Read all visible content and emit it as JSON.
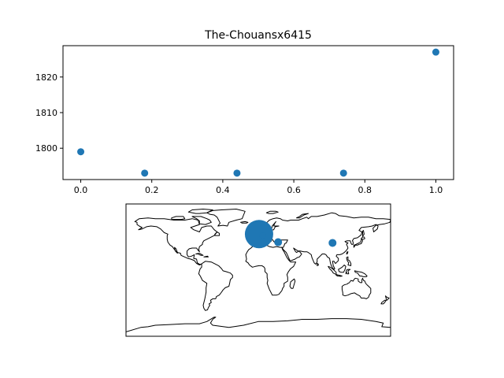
{
  "chart_data": [
    {
      "type": "scatter",
      "title": "The-Chouansx6415",
      "xlabel": "",
      "ylabel": "",
      "x": [
        0.0,
        0.18,
        0.44,
        0.74,
        1.0
      ],
      "y": [
        1799,
        1793,
        1793,
        1793,
        1827
      ],
      "xlim": [
        -0.05,
        1.05
      ],
      "ylim": [
        1791.2,
        1828.8
      ],
      "xticks": [
        0.0,
        0.2,
        0.4,
        0.6,
        0.8,
        1.0
      ],
      "xtick_labels": [
        "0.0",
        "0.2",
        "0.4",
        "0.6",
        "0.8",
        "1.0"
      ],
      "yticks": [
        1800,
        1810,
        1820
      ],
      "ytick_labels": [
        "1800",
        "1810",
        "1820"
      ],
      "grid": false,
      "marker_color": "#1f77b4"
    },
    {
      "type": "scatter",
      "subtype": "geo-map",
      "projection": "equirectangular",
      "extent": {
        "lon": [
          -180,
          180
        ],
        "lat": [
          -90,
          90
        ]
      },
      "points": [
        {
          "lon": 1,
          "lat": 49,
          "size": 18
        },
        {
          "lon": 6,
          "lat": 47,
          "size": 4
        },
        {
          "lon": 27,
          "lat": 38,
          "size": 5
        },
        {
          "lon": 101,
          "lat": 37,
          "size": 5
        }
      ],
      "coastlines": true,
      "marker_color": "#1f77b4"
    }
  ]
}
